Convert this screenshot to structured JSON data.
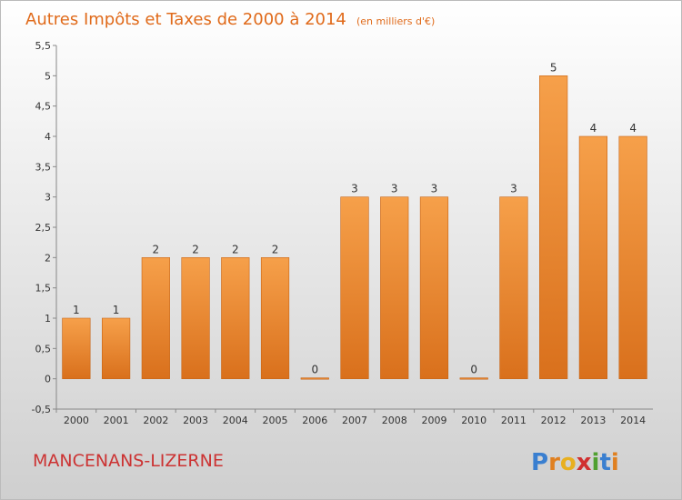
{
  "chart_data": {
    "type": "bar",
    "title": "Autres Impôts et Taxes de 2000 à 2014",
    "subtitle": "(en milliers d'€)",
    "categories": [
      "2000",
      "2001",
      "2002",
      "2003",
      "2004",
      "2005",
      "2006",
      "2007",
      "2008",
      "2009",
      "2010",
      "2011",
      "2012",
      "2013",
      "2014"
    ],
    "values": [
      1,
      1,
      2,
      2,
      2,
      2,
      0,
      3,
      3,
      3,
      0,
      3,
      5,
      4,
      4
    ],
    "data_labels": [
      "1",
      "1",
      "2",
      "2",
      "2",
      "2",
      "0",
      "3",
      "3",
      "3",
      "0",
      "3",
      "5",
      "4",
      "4"
    ],
    "ylim": [
      -0.5,
      5.5
    ],
    "yticks": [
      -0.5,
      0,
      0.5,
      1,
      1.5,
      2,
      2.5,
      3,
      3.5,
      4,
      4.5,
      5,
      5.5
    ],
    "ytick_labels": [
      "-0,5",
      "0",
      "0,5",
      "1",
      "1,5",
      "2",
      "2,5",
      "3",
      "3,5",
      "4",
      "4,5",
      "5",
      "5,5"
    ],
    "grid": false,
    "xlabel": "",
    "ylabel": "",
    "bar_color": "#f0892a"
  },
  "commune_name": "MANCENANS-LIZERNE",
  "logo": {
    "text": "Proxiti",
    "letters": [
      "P",
      "r",
      "o",
      "x",
      "i",
      "t",
      "i"
    ],
    "colors": [
      "#3a7fd0",
      "#e08020",
      "#e8b020",
      "#d03030",
      "#50a030",
      "#3a7fd0",
      "#e08020"
    ]
  }
}
